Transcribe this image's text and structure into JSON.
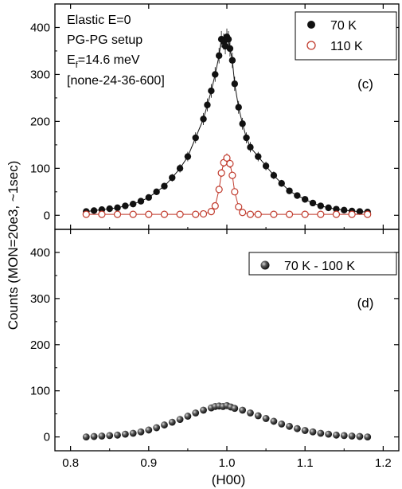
{
  "chart_data": [
    {
      "type": "scatter",
      "panel": "(c)",
      "annotations": [
        "Elastic E=0",
        "PG-PG setup",
        "E",
        "f",
        "=14.6 meV",
        "[none-24-36-600]"
      ],
      "xlabel": "(H00)",
      "ylabel": "Counts (MON=20e3, ~1sec)",
      "xlim": [
        0.78,
        1.22
      ],
      "ylim": [
        -30,
        450
      ],
      "x_ticks": [
        "0.8",
        "0.9",
        "1.0",
        "1.1",
        "1.2"
      ],
      "y_ticks": [
        "0",
        "100",
        "200",
        "300",
        "400"
      ],
      "grid": false,
      "legend_position": "top-right",
      "series": [
        {
          "name": "70 K",
          "marker": "filled-circle",
          "color": "#111111",
          "fit_line": true,
          "x": [
            0.82,
            0.83,
            0.84,
            0.85,
            0.86,
            0.87,
            0.88,
            0.89,
            0.9,
            0.91,
            0.92,
            0.93,
            0.94,
            0.95,
            0.96,
            0.97,
            0.975,
            0.98,
            0.985,
            0.99,
            0.993,
            0.996,
            0.998,
            1.0,
            1.002,
            1.004,
            1.007,
            1.01,
            1.015,
            1.02,
            1.025,
            1.03,
            1.04,
            1.05,
            1.06,
            1.07,
            1.08,
            1.09,
            1.1,
            1.11,
            1.12,
            1.13,
            1.14,
            1.15,
            1.16,
            1.17,
            1.18
          ],
          "y": [
            8,
            10,
            12,
            14,
            16,
            20,
            24,
            30,
            38,
            50,
            62,
            80,
            100,
            125,
            165,
            205,
            235,
            265,
            300,
            340,
            375,
            370,
            360,
            380,
            375,
            355,
            330,
            280,
            230,
            195,
            165,
            145,
            125,
            105,
            85,
            68,
            52,
            42,
            34,
            26,
            20,
            16,
            13,
            11,
            9,
            8,
            7
          ]
        },
        {
          "name": "110 K",
          "marker": "open-circle",
          "color": "#c0392b",
          "fit_line": true,
          "x": [
            0.82,
            0.84,
            0.86,
            0.88,
            0.9,
            0.92,
            0.94,
            0.96,
            0.97,
            0.98,
            0.985,
            0.99,
            0.993,
            0.996,
            1.0,
            1.004,
            1.007,
            1.01,
            1.015,
            1.02,
            1.03,
            1.04,
            1.06,
            1.08,
            1.1,
            1.12,
            1.14,
            1.16,
            1.18
          ],
          "y": [
            2,
            2,
            2,
            2,
            2,
            2,
            2,
            2,
            3,
            8,
            20,
            55,
            90,
            112,
            122,
            110,
            85,
            50,
            18,
            6,
            2,
            2,
            2,
            2,
            2,
            2,
            2,
            2,
            2
          ]
        }
      ]
    },
    {
      "type": "scatter",
      "panel": "(d)",
      "xlabel": "(H00)",
      "ylabel": "Counts (MON=20e3, ~1sec)",
      "xlim": [
        0.78,
        1.22
      ],
      "ylim": [
        -30,
        450
      ],
      "x_ticks": [
        "0.8",
        "0.9",
        "1.0",
        "1.1",
        "1.2"
      ],
      "y_ticks": [
        "0",
        "100",
        "200",
        "300",
        "400"
      ],
      "grid": false,
      "legend_position": "top-right",
      "series": [
        {
          "name": "70 K - 100 K",
          "marker": "shaded-sphere",
          "color": "#222222",
          "fit_line": false,
          "x": [
            0.82,
            0.83,
            0.84,
            0.85,
            0.86,
            0.87,
            0.88,
            0.89,
            0.9,
            0.91,
            0.92,
            0.93,
            0.94,
            0.95,
            0.96,
            0.97,
            0.98,
            0.985,
            0.99,
            0.995,
            1.0,
            1.005,
            1.01,
            1.02,
            1.03,
            1.04,
            1.05,
            1.06,
            1.07,
            1.08,
            1.09,
            1.1,
            1.11,
            1.12,
            1.13,
            1.14,
            1.15,
            1.16,
            1.17,
            1.18
          ],
          "y": [
            0,
            1,
            2,
            3,
            4,
            6,
            8,
            11,
            15,
            20,
            26,
            32,
            38,
            45,
            52,
            58,
            63,
            66,
            67,
            66,
            68,
            65,
            62,
            58,
            52,
            46,
            40,
            34,
            28,
            23,
            18,
            14,
            11,
            8,
            6,
            4,
            3,
            2,
            1,
            0
          ]
        }
      ]
    }
  ]
}
